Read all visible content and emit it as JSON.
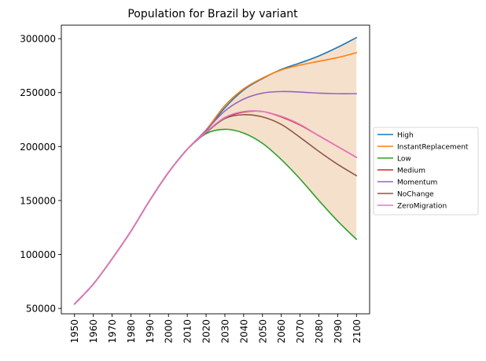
{
  "chart_data": {
    "type": "line",
    "title": "Population for Brazil by variant",
    "xlabel": "",
    "ylabel": "",
    "x": [
      1950,
      1960,
      1970,
      1980,
      1990,
      2000,
      2010,
      2020,
      2030,
      2040,
      2050,
      2060,
      2070,
      2080,
      2090,
      2100
    ],
    "x_ticks": [
      "1950",
      "1960",
      "1970",
      "1980",
      "1990",
      "2000",
      "2010",
      "2020",
      "2030",
      "2040",
      "2050",
      "2060",
      "2070",
      "2080",
      "2090",
      "2100"
    ],
    "y_ticks": [
      "50000",
      "100000",
      "150000",
      "200000",
      "250000",
      "300000"
    ],
    "xlim": [
      1943,
      2107
    ],
    "ylim": [
      45000,
      312500
    ],
    "legend_position": "right",
    "series": [
      {
        "name": "High",
        "color": "#1f77b4",
        "values": [
          54000,
          72500,
          96000,
          121500,
          150000,
          176000,
          197500,
          214500,
          236000,
          252500,
          263000,
          271500,
          277500,
          284000,
          292000,
          301000
        ]
      },
      {
        "name": "InstantReplacement",
        "color": "#ff7f0e",
        "values": [
          54000,
          72500,
          96000,
          121500,
          150000,
          176000,
          197500,
          215500,
          238000,
          253500,
          263500,
          271000,
          275500,
          279000,
          282500,
          287000
        ]
      },
      {
        "name": "Low",
        "color": "#2ca02c",
        "values": [
          54000,
          72500,
          96000,
          121500,
          150000,
          176000,
          197500,
          212000,
          216000,
          212500,
          203000,
          188000,
          170000,
          150000,
          131000,
          114000
        ]
      },
      {
        "name": "Medium",
        "color": "#d62728",
        "values": [
          54000,
          72500,
          96000,
          121500,
          150000,
          176000,
          197500,
          213000,
          226500,
          232000,
          232500,
          227500,
          220000,
          210000,
          200000,
          190000
        ]
      },
      {
        "name": "Momentum",
        "color": "#9467bd",
        "values": [
          54000,
          72500,
          96000,
          121500,
          150000,
          176000,
          197500,
          215000,
          233000,
          244000,
          249500,
          251000,
          250500,
          249500,
          249000,
          249000
        ]
      },
      {
        "name": "NoChange",
        "color": "#8c564b",
        "values": [
          54000,
          72500,
          96000,
          121500,
          150000,
          176000,
          197500,
          213000,
          226000,
          229500,
          227500,
          220500,
          208500,
          195500,
          183500,
          173000
        ]
      },
      {
        "name": "ZeroMigration",
        "color": "#e377c2",
        "values": [
          54000,
          72500,
          96000,
          121500,
          150000,
          176000,
          197500,
          213500,
          227000,
          232500,
          232500,
          228000,
          220500,
          210000,
          200000,
          190000
        ]
      }
    ],
    "band": {
      "color": "#f5e0cc",
      "upper_series": "High",
      "lower_series": "Low",
      "from_x": 2020
    }
  }
}
